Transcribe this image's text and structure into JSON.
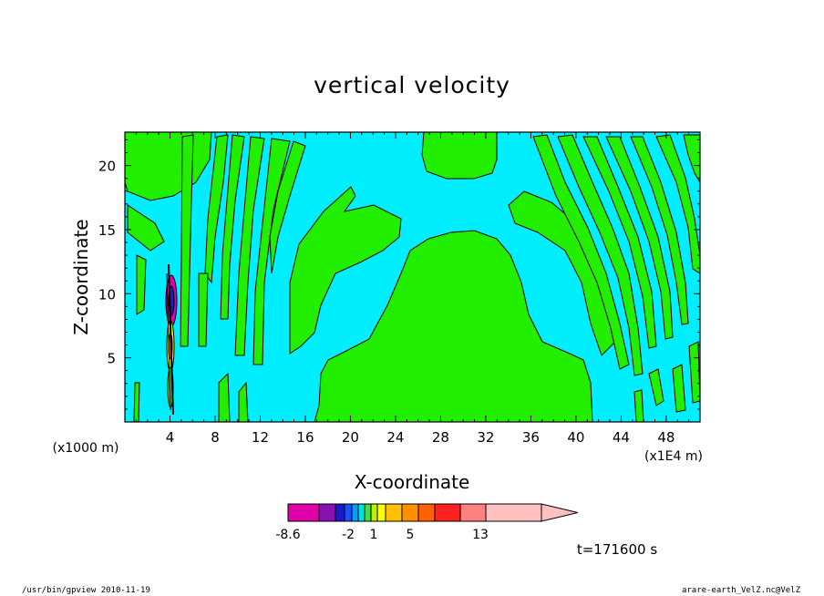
{
  "chart_data": {
    "type": "heatmap",
    "title": "vertical velocity",
    "xlabel": "X-coordinate",
    "ylabel": "Z-coordinate",
    "x_unit": "(x1E4 m)",
    "y_unit": "(x1000 m)",
    "xlim": [
      0,
      51
    ],
    "ylim": [
      0,
      22.6
    ],
    "x_ticks": [
      4,
      8,
      12,
      16,
      20,
      24,
      28,
      32,
      36,
      40,
      44,
      48
    ],
    "y_ticks": [
      5,
      10,
      15,
      20
    ],
    "x_tick_labels": [
      "4",
      "8",
      "12",
      "16",
      "20",
      "24",
      "28",
      "32",
      "36",
      "40",
      "44",
      "48"
    ],
    "y_tick_labels": [
      "5",
      "10",
      "15",
      "20"
    ],
    "colorbar": {
      "labels": [
        "-8.6",
        "-2",
        "1",
        "5",
        "13"
      ],
      "colors": [
        "#e000a8",
        "#8a10b0",
        "#1a1acc",
        "#1a50ff",
        "#00a0ff",
        "#00e0e0",
        "#40e040",
        "#c0f000",
        "#ffff00",
        "#ffc000",
        "#ff9000",
        "#ff6000",
        "#ff2020",
        "#ff8080",
        "#ffc0c0"
      ],
      "extend": "max"
    },
    "background_color": "#00eeff",
    "positive_color": "#22ee00",
    "time_label": "t=171600 s"
  },
  "footer": {
    "left": "/usr/bin/gpview   2010-11-19",
    "right": "arare-earth_VelZ.nc@VelZ"
  }
}
